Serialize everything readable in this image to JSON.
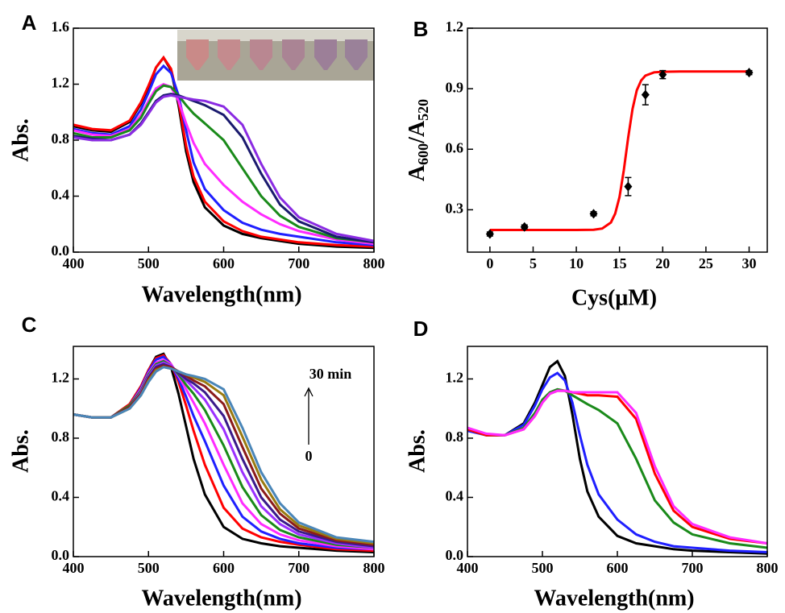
{
  "chart_data": [
    {
      "type": "line",
      "panel_label": "A",
      "x_label": "Wavelength(nm)",
      "y_label": "Abs.",
      "x": [
        400,
        425,
        450,
        475,
        490,
        500,
        510,
        520,
        530,
        540,
        550,
        560,
        575,
        600,
        625,
        650,
        675,
        700,
        750,
        800
      ],
      "xlim": [
        400,
        800
      ],
      "xticks": [
        400,
        500,
        600,
        700,
        800
      ],
      "ylim": [
        0,
        1.6
      ],
      "yticks": [
        {
          "value": 0,
          "label": "0.0"
        },
        0.4,
        0.8,
        1.2,
        1.6
      ],
      "series": [
        {
          "color": "#000000",
          "values": [
            0.9,
            0.87,
            0.86,
            0.93,
            1.06,
            1.18,
            1.32,
            1.39,
            1.3,
            1.05,
            0.72,
            0.5,
            0.32,
            0.19,
            0.13,
            0.1,
            0.08,
            0.06,
            0.04,
            0.03
          ]
        },
        {
          "color": "#ff0000",
          "values": [
            0.91,
            0.88,
            0.87,
            0.94,
            1.07,
            1.19,
            1.32,
            1.39,
            1.31,
            1.08,
            0.76,
            0.54,
            0.36,
            0.22,
            0.15,
            0.11,
            0.09,
            0.07,
            0.05,
            0.04
          ]
        },
        {
          "color": "#1f1fff",
          "values": [
            0.88,
            0.85,
            0.84,
            0.9,
            1.02,
            1.14,
            1.27,
            1.33,
            1.28,
            1.12,
            0.87,
            0.64,
            0.45,
            0.3,
            0.21,
            0.16,
            0.13,
            0.11,
            0.07,
            0.05
          ]
        },
        {
          "color": "#ff2bff",
          "values": [
            0.87,
            0.84,
            0.83,
            0.88,
            0.98,
            1.08,
            1.17,
            1.2,
            1.18,
            1.08,
            0.92,
            0.78,
            0.63,
            0.48,
            0.36,
            0.27,
            0.2,
            0.15,
            0.09,
            0.06
          ]
        },
        {
          "color": "#1a8a1a",
          "values": [
            0.85,
            0.82,
            0.82,
            0.87,
            0.96,
            1.06,
            1.15,
            1.19,
            1.18,
            1.12,
            1.05,
            0.99,
            0.92,
            0.8,
            0.6,
            0.4,
            0.26,
            0.18,
            0.1,
            0.07
          ]
        },
        {
          "color": "#1a1a6e",
          "values": [
            0.83,
            0.81,
            0.8,
            0.84,
            0.92,
            1.0,
            1.08,
            1.12,
            1.13,
            1.12,
            1.1,
            1.08,
            1.05,
            0.98,
            0.82,
            0.56,
            0.34,
            0.22,
            0.11,
            0.07
          ]
        },
        {
          "color": "#8a2be2",
          "values": [
            0.82,
            0.8,
            0.8,
            0.84,
            0.91,
            0.99,
            1.07,
            1.11,
            1.12,
            1.11,
            1.1,
            1.09,
            1.08,
            1.04,
            0.91,
            0.63,
            0.39,
            0.25,
            0.13,
            0.08
          ]
        }
      ]
    },
    {
      "type": "scatter",
      "panel_label": "B",
      "x_label": "Cys(μM)",
      "y_label_parts": [
        "A",
        "600",
        "/A",
        "520"
      ],
      "x": [
        0,
        4,
        12,
        16,
        18,
        20,
        30
      ],
      "values": [
        0.18,
        0.215,
        0.28,
        0.415,
        0.87,
        0.97,
        0.98
      ],
      "errors": [
        0.01,
        0.01,
        0.01,
        0.045,
        0.05,
        0.02,
        0.01
      ],
      "color": "#000000",
      "fit": {
        "color": "#ff0000",
        "x": [
          0,
          5,
          10,
          12,
          13,
          14,
          14.5,
          15,
          15.5,
          16,
          16.5,
          17,
          17.5,
          18,
          19,
          20,
          22,
          25,
          30
        ],
        "values": [
          0.2,
          0.2,
          0.2,
          0.201,
          0.207,
          0.237,
          0.281,
          0.364,
          0.496,
          0.657,
          0.799,
          0.892,
          0.941,
          0.965,
          0.981,
          0.984,
          0.985,
          0.985,
          0.985
        ]
      },
      "xlim": [
        -2.6,
        32.1
      ],
      "xticks": [
        0,
        5,
        10,
        15,
        20,
        25,
        30
      ],
      "ylim": [
        0.09,
        1.2
      ],
      "yticks": [
        0.3,
        0.6,
        0.9,
        1.2
      ]
    },
    {
      "type": "line",
      "panel_label": "C",
      "x_label": "Wavelength(nm)",
      "y_label": "Abs.",
      "annotations": [
        "30 min",
        "0"
      ],
      "x": [
        400,
        425,
        450,
        475,
        490,
        500,
        510,
        520,
        530,
        540,
        550,
        560,
        575,
        600,
        625,
        650,
        675,
        700,
        750,
        800
      ],
      "xlim": [
        400,
        800
      ],
      "xticks": [
        400,
        500,
        600,
        700,
        800
      ],
      "ylim": [
        0,
        1.42
      ],
      "yticks": [
        {
          "value": 0,
          "label": "0.0"
        },
        0.4,
        0.8,
        1.2
      ],
      "series": [
        {
          "color": "#000000",
          "values": [
            0.96,
            0.94,
            0.94,
            1.03,
            1.15,
            1.26,
            1.35,
            1.37,
            1.28,
            1.1,
            0.88,
            0.66,
            0.42,
            0.2,
            0.12,
            0.09,
            0.07,
            0.06,
            0.04,
            0.03
          ]
        },
        {
          "color": "#ff0000",
          "values": [
            0.96,
            0.94,
            0.94,
            1.03,
            1.15,
            1.26,
            1.34,
            1.36,
            1.3,
            1.18,
            1.02,
            0.85,
            0.62,
            0.33,
            0.19,
            0.13,
            0.1,
            0.08,
            0.05,
            0.04
          ]
        },
        {
          "color": "#1f1fff",
          "values": [
            0.96,
            0.94,
            0.94,
            1.02,
            1.14,
            1.25,
            1.33,
            1.35,
            1.3,
            1.2,
            1.08,
            0.95,
            0.78,
            0.48,
            0.27,
            0.17,
            0.12,
            0.09,
            0.06,
            0.05
          ]
        },
        {
          "color": "#ff2bff",
          "values": [
            0.96,
            0.94,
            0.94,
            1.02,
            1.13,
            1.24,
            1.31,
            1.33,
            1.3,
            1.22,
            1.13,
            1.04,
            0.9,
            0.62,
            0.36,
            0.22,
            0.15,
            0.11,
            0.07,
            0.05
          ]
        },
        {
          "color": "#1a8a1a",
          "values": [
            0.96,
            0.94,
            0.94,
            1.02,
            1.12,
            1.23,
            1.3,
            1.32,
            1.29,
            1.23,
            1.16,
            1.1,
            0.99,
            0.75,
            0.47,
            0.28,
            0.18,
            0.13,
            0.08,
            0.06
          ]
        },
        {
          "color": "#9b30ff",
          "values": [
            0.96,
            0.94,
            0.94,
            1.01,
            1.11,
            1.22,
            1.29,
            1.31,
            1.29,
            1.24,
            1.19,
            1.14,
            1.06,
            0.86,
            0.57,
            0.34,
            0.22,
            0.15,
            0.09,
            0.06
          ]
        },
        {
          "color": "#3a1a8a",
          "values": [
            0.96,
            0.94,
            0.94,
            1.01,
            1.1,
            1.21,
            1.28,
            1.3,
            1.28,
            1.24,
            1.2,
            1.17,
            1.11,
            0.95,
            0.66,
            0.4,
            0.25,
            0.17,
            0.1,
            0.07
          ]
        },
        {
          "color": "#8b1a1a",
          "values": [
            0.96,
            0.94,
            0.94,
            1.01,
            1.1,
            1.2,
            1.27,
            1.29,
            1.28,
            1.25,
            1.22,
            1.19,
            1.15,
            1.03,
            0.74,
            0.46,
            0.29,
            0.19,
            0.11,
            0.08
          ]
        },
        {
          "color": "#9a7a10",
          "values": [
            0.96,
            0.94,
            0.94,
            1.0,
            1.09,
            1.19,
            1.26,
            1.28,
            1.27,
            1.25,
            1.23,
            1.21,
            1.18,
            1.09,
            0.81,
            0.52,
            0.32,
            0.21,
            0.12,
            0.09
          ]
        },
        {
          "color": "#4a86b8",
          "values": [
            0.96,
            0.94,
            0.94,
            1.0,
            1.09,
            1.18,
            1.25,
            1.28,
            1.27,
            1.25,
            1.23,
            1.22,
            1.2,
            1.13,
            0.87,
            0.57,
            0.36,
            0.23,
            0.13,
            0.1
          ]
        }
      ]
    },
    {
      "type": "line",
      "panel_label": "D",
      "x_label": "Wavelength(nm)",
      "y_label": "Abs.",
      "x": [
        400,
        425,
        450,
        475,
        490,
        500,
        510,
        520,
        530,
        540,
        550,
        560,
        575,
        600,
        625,
        650,
        675,
        700,
        750,
        800
      ],
      "xlim": [
        400,
        800
      ],
      "xticks": [
        400,
        500,
        600,
        700,
        800
      ],
      "ylim": [
        0,
        1.42
      ],
      "yticks": [
        {
          "value": 0,
          "label": "0.0"
        },
        0.4,
        0.8,
        1.2
      ],
      "series": [
        {
          "color": "#000000",
          "values": [
            0.86,
            0.82,
            0.82,
            0.9,
            1.04,
            1.16,
            1.28,
            1.32,
            1.22,
            0.96,
            0.66,
            0.44,
            0.27,
            0.14,
            0.09,
            0.07,
            0.05,
            0.04,
            0.03,
            0.02
          ]
        },
        {
          "color": "#1f1fff",
          "values": [
            0.85,
            0.82,
            0.82,
            0.89,
            1.02,
            1.13,
            1.21,
            1.24,
            1.19,
            1.04,
            0.82,
            0.62,
            0.42,
            0.25,
            0.15,
            0.1,
            0.07,
            0.06,
            0.04,
            0.03
          ]
        },
        {
          "color": "#1a8a1a",
          "values": [
            0.86,
            0.82,
            0.82,
            0.87,
            0.97,
            1.06,
            1.11,
            1.13,
            1.12,
            1.09,
            1.06,
            1.03,
            0.99,
            0.9,
            0.66,
            0.38,
            0.23,
            0.15,
            0.09,
            0.06
          ]
        },
        {
          "color": "#ff0000",
          "values": [
            0.86,
            0.82,
            0.82,
            0.86,
            0.95,
            1.04,
            1.1,
            1.12,
            1.12,
            1.11,
            1.1,
            1.09,
            1.09,
            1.08,
            0.93,
            0.56,
            0.31,
            0.2,
            0.12,
            0.09
          ]
        },
        {
          "color": "#ff2bff",
          "values": [
            0.87,
            0.83,
            0.82,
            0.86,
            0.95,
            1.04,
            1.1,
            1.12,
            1.12,
            1.11,
            1.11,
            1.11,
            1.11,
            1.11,
            0.97,
            0.61,
            0.34,
            0.22,
            0.13,
            0.09
          ]
        }
      ]
    }
  ]
}
